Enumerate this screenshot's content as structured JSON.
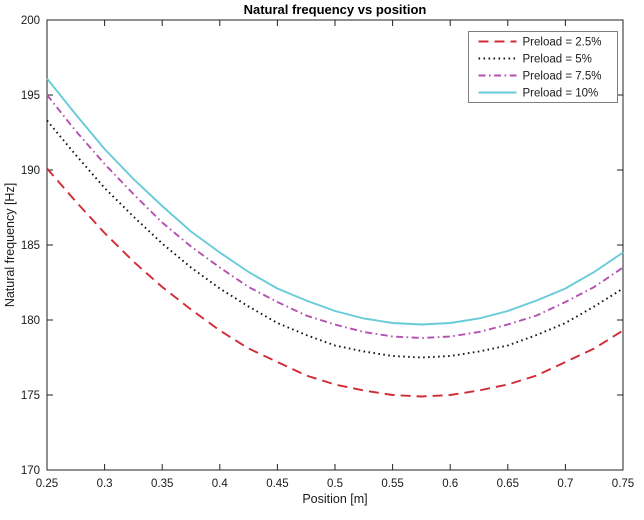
{
  "chart_data": {
    "type": "line",
    "title": "Natural frequency vs position",
    "xlabel": "Position [m]",
    "ylabel": "Natural frequency [Hz]",
    "xlim": [
      0.25,
      0.75
    ],
    "ylim": [
      170,
      200
    ],
    "grid": false,
    "legend_position": "top-right",
    "axis_color": "#222222",
    "legend_border_color": "#808080",
    "xticks": [
      0.25,
      0.3,
      0.35,
      0.4,
      0.45,
      0.5,
      0.55,
      0.6,
      0.65,
      0.7,
      0.75
    ],
    "xtick_labels": [
      "0.25",
      "0.3",
      "0.35",
      "0.4",
      "0.45",
      "0.5",
      "0.55",
      "0.6",
      "0.65",
      "0.7",
      "0.75"
    ],
    "yticks": [
      170,
      175,
      180,
      185,
      190,
      195,
      200
    ],
    "ytick_labels": [
      "170",
      "175",
      "180",
      "185",
      "190",
      "195",
      "200"
    ],
    "x": [
      0.25,
      0.275,
      0.3,
      0.325,
      0.35,
      0.375,
      0.4,
      0.425,
      0.45,
      0.475,
      0.5,
      0.525,
      0.55,
      0.575,
      0.6,
      0.625,
      0.65,
      0.675,
      0.7,
      0.725,
      0.75
    ],
    "series": [
      {
        "name": "Preload = 2.5%",
        "color": "#d12b35",
        "style": "dashed",
        "values": [
          190.1,
          187.9,
          185.8,
          183.9,
          182.2,
          180.7,
          179.3,
          178.1,
          177.2,
          176.3,
          175.7,
          175.3,
          175.0,
          174.9,
          175.0,
          175.3,
          175.7,
          176.3,
          177.2,
          178.1,
          179.3
        ]
      },
      {
        "name": "Preload = 5%",
        "color": "#141414",
        "style": "dotted",
        "values": [
          193.3,
          191.0,
          188.8,
          186.9,
          185.1,
          183.5,
          182.1,
          180.9,
          179.8,
          179.0,
          178.3,
          177.9,
          177.6,
          177.5,
          177.6,
          177.9,
          178.3,
          179.0,
          179.8,
          180.9,
          182.1
        ]
      },
      {
        "name": "Preload = 7.5%",
        "color": "#b351b0",
        "style": "dashdot",
        "values": [
          195.0,
          192.6,
          190.4,
          188.4,
          186.5,
          184.9,
          183.5,
          182.2,
          181.2,
          180.3,
          179.7,
          179.2,
          178.9,
          178.8,
          178.9,
          179.2,
          179.7,
          180.3,
          181.2,
          182.2,
          183.5
        ]
      },
      {
        "name": "Preload = 10%",
        "color": "#68cbd9",
        "style": "solid",
        "values": [
          196.1,
          193.7,
          191.4,
          189.4,
          187.6,
          185.9,
          184.5,
          183.2,
          182.1,
          181.3,
          180.6,
          180.1,
          179.8,
          179.7,
          179.8,
          180.1,
          180.6,
          181.3,
          182.1,
          183.2,
          184.5
        ]
      }
    ]
  }
}
